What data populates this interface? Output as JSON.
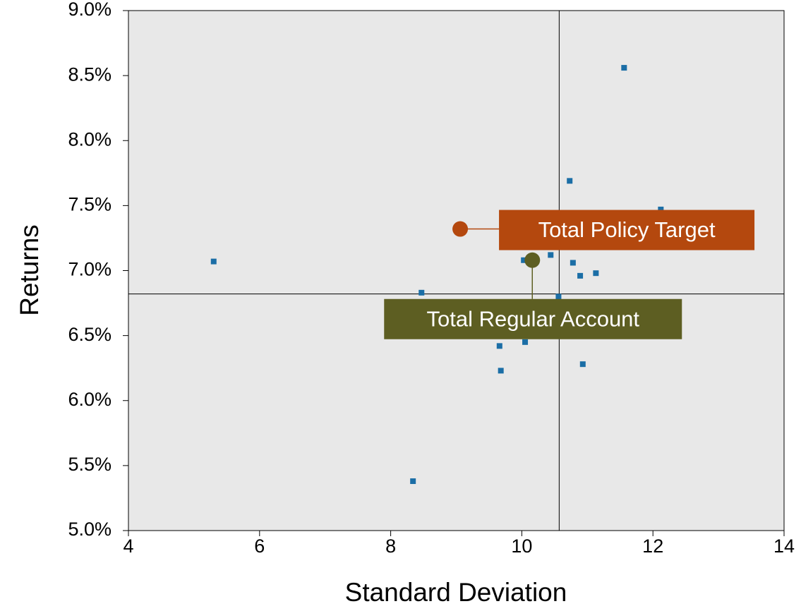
{
  "chart_data": {
    "type": "scatter",
    "x_label": "Standard Deviation",
    "y_label": "Returns",
    "xlim": [
      4,
      14
    ],
    "xticks": [
      4,
      6,
      8,
      10,
      12,
      14
    ],
    "ylim": [
      5.0,
      9.0
    ],
    "yticks": [
      {
        "value": 5.0,
        "label": "5.0%"
      },
      {
        "value": 5.5,
        "label": "5.5%"
      },
      {
        "value": 6.0,
        "label": "6.0%"
      },
      {
        "value": 6.5,
        "label": "6.5%"
      },
      {
        "value": 7.0,
        "label": "7.0%"
      },
      {
        "value": 7.5,
        "label": "7.5%"
      },
      {
        "value": 8.0,
        "label": "8.0%"
      },
      {
        "value": 8.5,
        "label": "8.5%"
      },
      {
        "value": 9.0,
        "label": "9.0%"
      }
    ],
    "series": [
      {
        "color": "#1b6ea6",
        "x": [
          11.56,
          10.73,
          12.12,
          5.3,
          10.44,
          10.03,
          10.78,
          11.13,
          10.89,
          8.47,
          10.56,
          10.05,
          9.66,
          9.68,
          10.93,
          8.34
        ],
        "values": [
          8.56,
          7.69,
          7.47,
          7.07,
          7.12,
          7.08,
          7.06,
          6.98,
          6.96,
          6.83,
          6.8,
          6.45,
          6.42,
          6.23,
          6.28,
          5.38
        ]
      }
    ],
    "reference_lines": {
      "x": 10.57,
      "y": 6.82
    },
    "annotations": [
      {
        "text": "Total Policy Target",
        "x": 9.06,
        "y": 7.32,
        "color": "#b4480e"
      },
      {
        "text": "Total Regular Account",
        "x": 10.16,
        "y": 7.08,
        "color": "#5d5e22"
      }
    ],
    "plot_background": "#e8e8e8"
  }
}
